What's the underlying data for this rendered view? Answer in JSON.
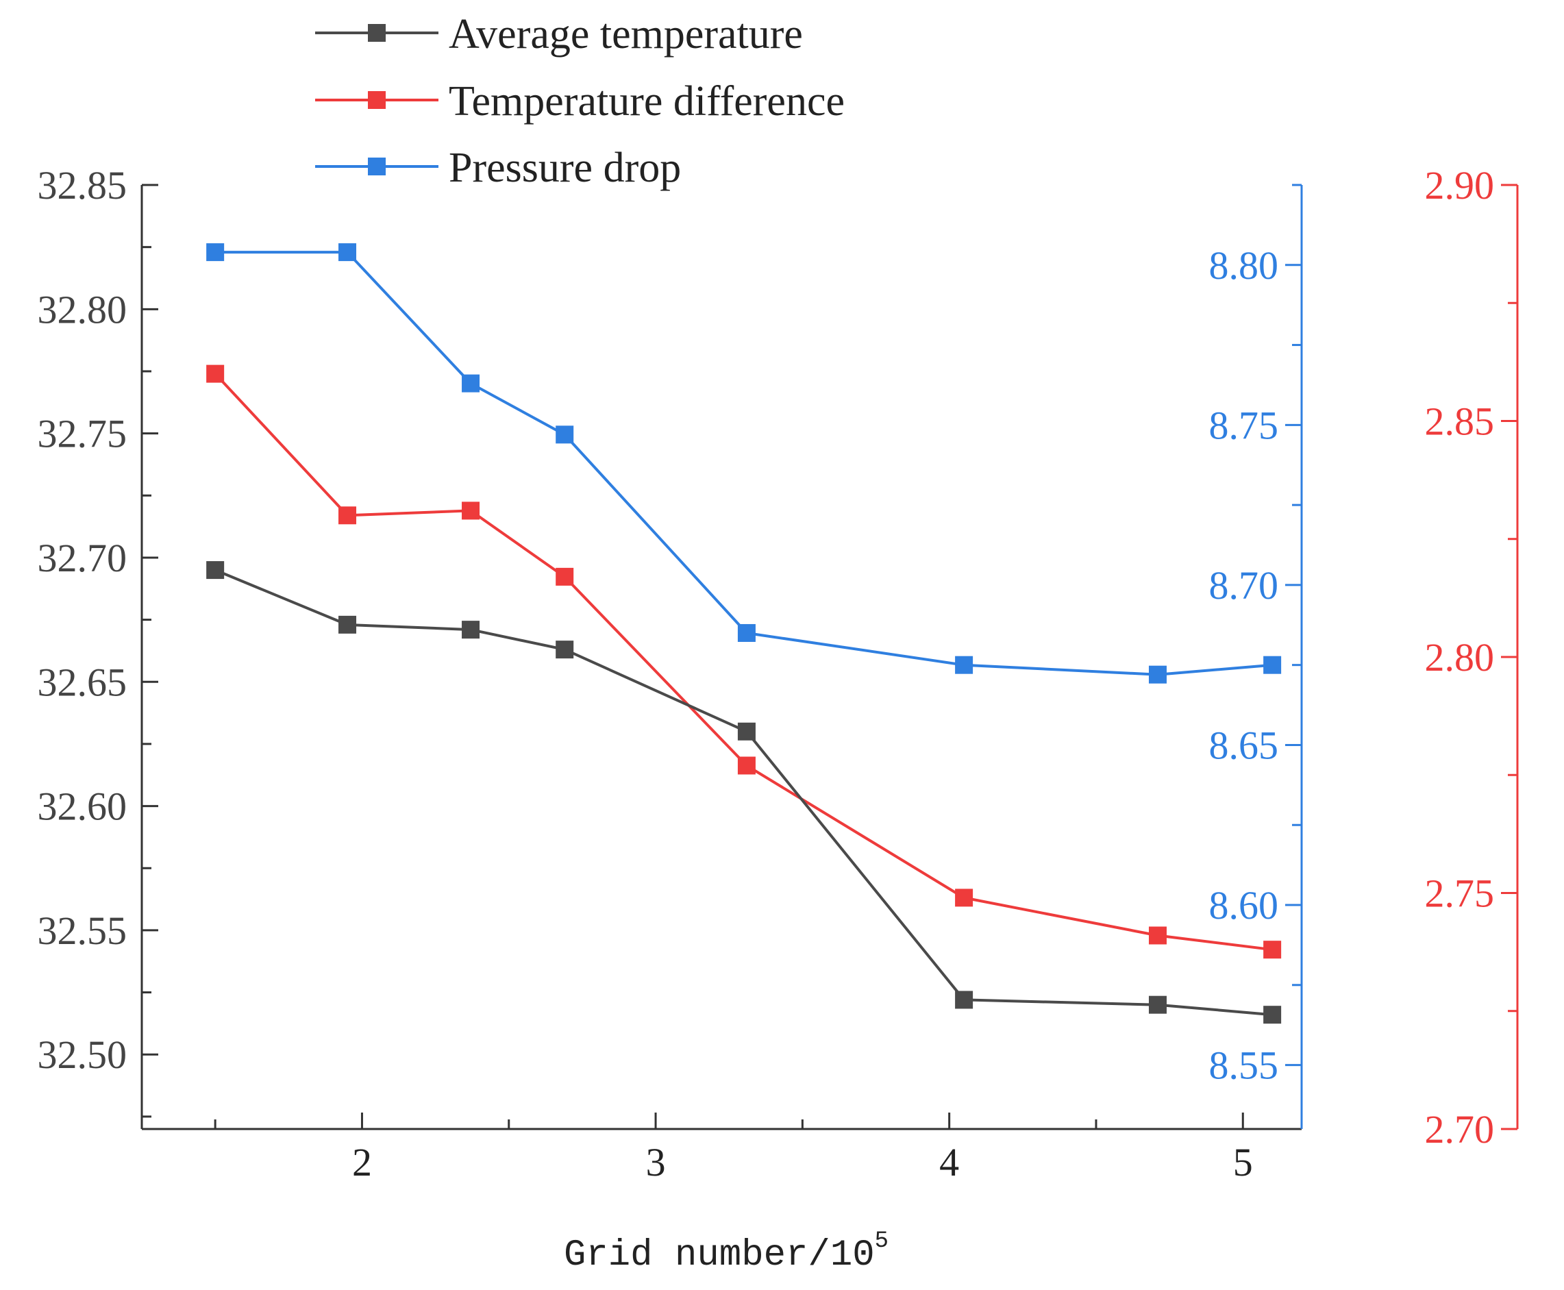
{
  "chart_data": {
    "type": "line",
    "xlabel": "Grid number/10",
    "xlabel_superscript": "5",
    "xlim": [
      1.25,
      5.2
    ],
    "xticks": [
      2,
      3,
      4,
      5
    ],
    "xtick_labels": [
      "2",
      "3",
      "4",
      "5"
    ],
    "x": [
      1.5,
      1.95,
      2.37,
      2.69,
      3.31,
      4.05,
      4.71,
      5.1
    ],
    "legend_position": "top-left",
    "axes": {
      "left": {
        "ylim": [
          32.47,
          32.85
        ],
        "ticks": [
          32.5,
          32.55,
          32.6,
          32.65,
          32.7,
          32.75,
          32.8,
          32.85
        ],
        "tick_labels": [
          "32.50",
          "32.55",
          "32.60",
          "32.65",
          "32.70",
          "32.75",
          "32.80",
          "32.85"
        ],
        "color": "#444444"
      },
      "right_blue": {
        "ylim": [
          8.53,
          8.825
        ],
        "ticks": [
          8.55,
          8.6,
          8.65,
          8.7,
          8.75,
          8.8
        ],
        "tick_labels": [
          "8.55",
          "8.60",
          "8.65",
          "8.70",
          "8.75",
          "8.80"
        ],
        "color": "#2f7fe0"
      },
      "right_red": {
        "ylim": [
          2.7,
          2.9
        ],
        "ticks": [
          2.7,
          2.75,
          2.8,
          2.85,
          2.9
        ],
        "tick_labels": [
          "2.70",
          "2.75",
          "2.80",
          "2.85",
          "2.90"
        ],
        "color": "#ee3b3b"
      }
    },
    "series": [
      {
        "name": "Average temperature",
        "axis": "left",
        "color": "#4a4a4a",
        "values": [
          32.695,
          32.673,
          32.671,
          32.663,
          32.63,
          32.522,
          32.52,
          32.516
        ]
      },
      {
        "name": "Temperature difference",
        "axis": "right_red",
        "color": "#ee3b3b",
        "values": [
          2.86,
          2.83,
          2.831,
          2.817,
          2.777,
          2.749,
          2.741,
          2.738
        ]
      },
      {
        "name": "Pressure drop",
        "axis": "right_blue",
        "color": "#2f7fe0",
        "values": [
          8.804,
          8.804,
          8.763,
          8.747,
          8.685,
          8.675,
          8.672,
          8.675
        ]
      }
    ]
  }
}
